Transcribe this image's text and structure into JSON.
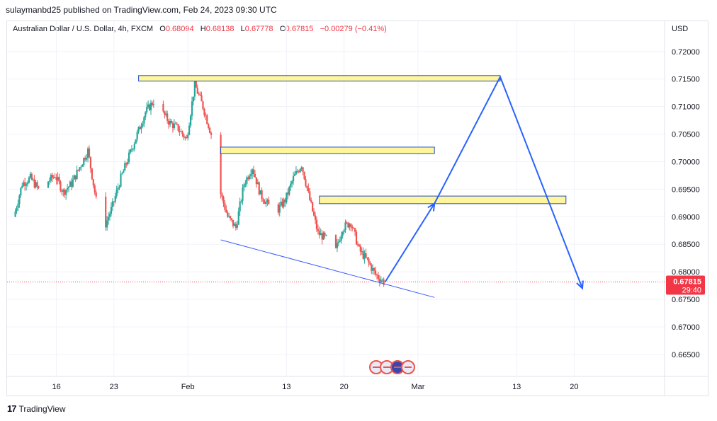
{
  "header": {
    "published_text": "sulaymanbd25 published on TradingView.com, Feb 24, 2023 09:30 UTC"
  },
  "legend": {
    "symbol": "Australian Dollar / U.S. Dollar, 4h, FXCM",
    "o_label": "O",
    "o_value": "0.68094",
    "h_label": "H",
    "h_value": "0.68138",
    "l_label": "L",
    "l_value": "0.67778",
    "c_label": "C",
    "c_value": "0.67815",
    "change": "−0.00279 (−0.41%)"
  },
  "price_axis": {
    "currency": "USD",
    "last_price": "0.67815",
    "countdown": "29:40"
  },
  "footer": {
    "brand": "TradingView",
    "logo_mark": "17"
  },
  "colors": {
    "up": "#26a69a",
    "down": "#ef5350",
    "zone_fill": "#fff59d",
    "zone_border": "#1e4fc2",
    "projection": "#2962ff",
    "trendline": "#3d5afe",
    "price_tag": "#f23645"
  },
  "chart_data": {
    "type": "candlestick",
    "title": "Australian Dollar / U.S. Dollar, 4h, FXCM",
    "xlabel": "",
    "ylabel": "USD",
    "ylim": [
      0.661,
      0.7255
    ],
    "y_ticks": [
      "0.72000",
      "0.71500",
      "0.71000",
      "0.70500",
      "0.70000",
      "0.69500",
      "0.69000",
      "0.68500",
      "0.68000",
      "0.67500",
      "0.67000",
      "0.66500"
    ],
    "x_ticks": [
      {
        "label": "16",
        "date": "2023-01-16"
      },
      {
        "label": "23",
        "date": "2023-01-23"
      },
      {
        "label": "Feb",
        "date": "2023-02-01"
      },
      {
        "label": "13",
        "date": "2023-02-13"
      },
      {
        "label": "20",
        "date": "2023-02-20"
      },
      {
        "label": "Mar",
        "date": "2023-03-01"
      },
      {
        "label": "13",
        "date": "2023-03-13"
      },
      {
        "label": "20",
        "date": "2023-03-20"
      }
    ],
    "price_path": [
      {
        "date": "2023-01-11",
        "price": 0.69
      },
      {
        "date": "2023-01-12",
        "price": 0.696
      },
      {
        "date": "2023-01-13",
        "price": 0.697
      },
      {
        "date": "2023-01-14",
        "price": 0.695
      },
      {
        "date": "2023-01-16",
        "price": 0.6975
      },
      {
        "date": "2023-01-17",
        "price": 0.6945
      },
      {
        "date": "2023-01-18",
        "price": 0.696
      },
      {
        "date": "2023-01-19",
        "price": 0.699
      },
      {
        "date": "2023-01-20",
        "price": 0.702
      },
      {
        "date": "2023-01-21",
        "price": 0.693
      },
      {
        "date": "2023-01-22",
        "price": 0.688
      },
      {
        "date": "2023-01-23",
        "price": 0.692
      },
      {
        "date": "2023-01-24",
        "price": 0.697
      },
      {
        "date": "2023-01-25",
        "price": 0.701
      },
      {
        "date": "2023-01-26",
        "price": 0.705
      },
      {
        "date": "2023-01-27",
        "price": 0.709
      },
      {
        "date": "2023-01-28",
        "price": 0.711
      },
      {
        "date": "2023-01-29",
        "price": 0.709
      },
      {
        "date": "2023-01-30",
        "price": 0.707
      },
      {
        "date": "2023-01-31",
        "price": 0.706
      },
      {
        "date": "2023-02-01",
        "price": 0.704
      },
      {
        "date": "2023-02-02",
        "price": 0.714
      },
      {
        "date": "2023-02-03",
        "price": 0.71
      },
      {
        "date": "2023-02-04",
        "price": 0.705
      },
      {
        "date": "2023-02-05",
        "price": 0.695
      },
      {
        "date": "2023-02-06",
        "price": 0.69
      },
      {
        "date": "2023-02-07",
        "price": 0.688
      },
      {
        "date": "2023-02-08",
        "price": 0.696
      },
      {
        "date": "2023-02-09",
        "price": 0.699
      },
      {
        "date": "2023-02-10",
        "price": 0.694
      },
      {
        "date": "2023-02-11",
        "price": 0.692
      },
      {
        "date": "2023-02-12",
        "price": 0.691
      },
      {
        "date": "2023-02-13",
        "price": 0.693
      },
      {
        "date": "2023-02-14",
        "price": 0.697
      },
      {
        "date": "2023-02-15",
        "price": 0.6995
      },
      {
        "date": "2023-02-16",
        "price": 0.693
      },
      {
        "date": "2023-02-17",
        "price": 0.687
      },
      {
        "date": "2023-02-18",
        "price": 0.686
      },
      {
        "date": "2023-02-19",
        "price": 0.683
      },
      {
        "date": "2023-02-20",
        "price": 0.688
      },
      {
        "date": "2023-02-21",
        "price": 0.689
      },
      {
        "date": "2023-02-22",
        "price": 0.684
      },
      {
        "date": "2023-02-23",
        "price": 0.682
      },
      {
        "date": "2023-02-24",
        "price": 0.6795
      },
      {
        "date": "2023-02-25",
        "price": 0.67815
      }
    ],
    "zones": [
      {
        "date_from": "2023-01-26",
        "date_to": "2023-03-11",
        "price_from": 0.71463,
        "price_to": 0.71563
      },
      {
        "date_from": "2023-02-05",
        "date_to": "2023-03-03",
        "price_from": 0.70147,
        "price_to": 0.70264
      },
      {
        "date_from": "2023-02-17",
        "date_to": "2023-03-19",
        "price_from": 0.69237,
        "price_to": 0.69375
      }
    ],
    "trendline": [
      {
        "date": "2023-02-05",
        "price": 0.6858
      },
      {
        "date": "2023-03-03",
        "price": 0.67535
      }
    ],
    "projection": [
      {
        "date": "2023-02-25",
        "price": 0.67815
      },
      {
        "date": "2023-03-03",
        "price": 0.6924
      },
      {
        "date": "2023-03-11",
        "price": 0.7154
      },
      {
        "date": "2023-03-21",
        "price": 0.677
      }
    ],
    "last_price": 0.67815
  }
}
